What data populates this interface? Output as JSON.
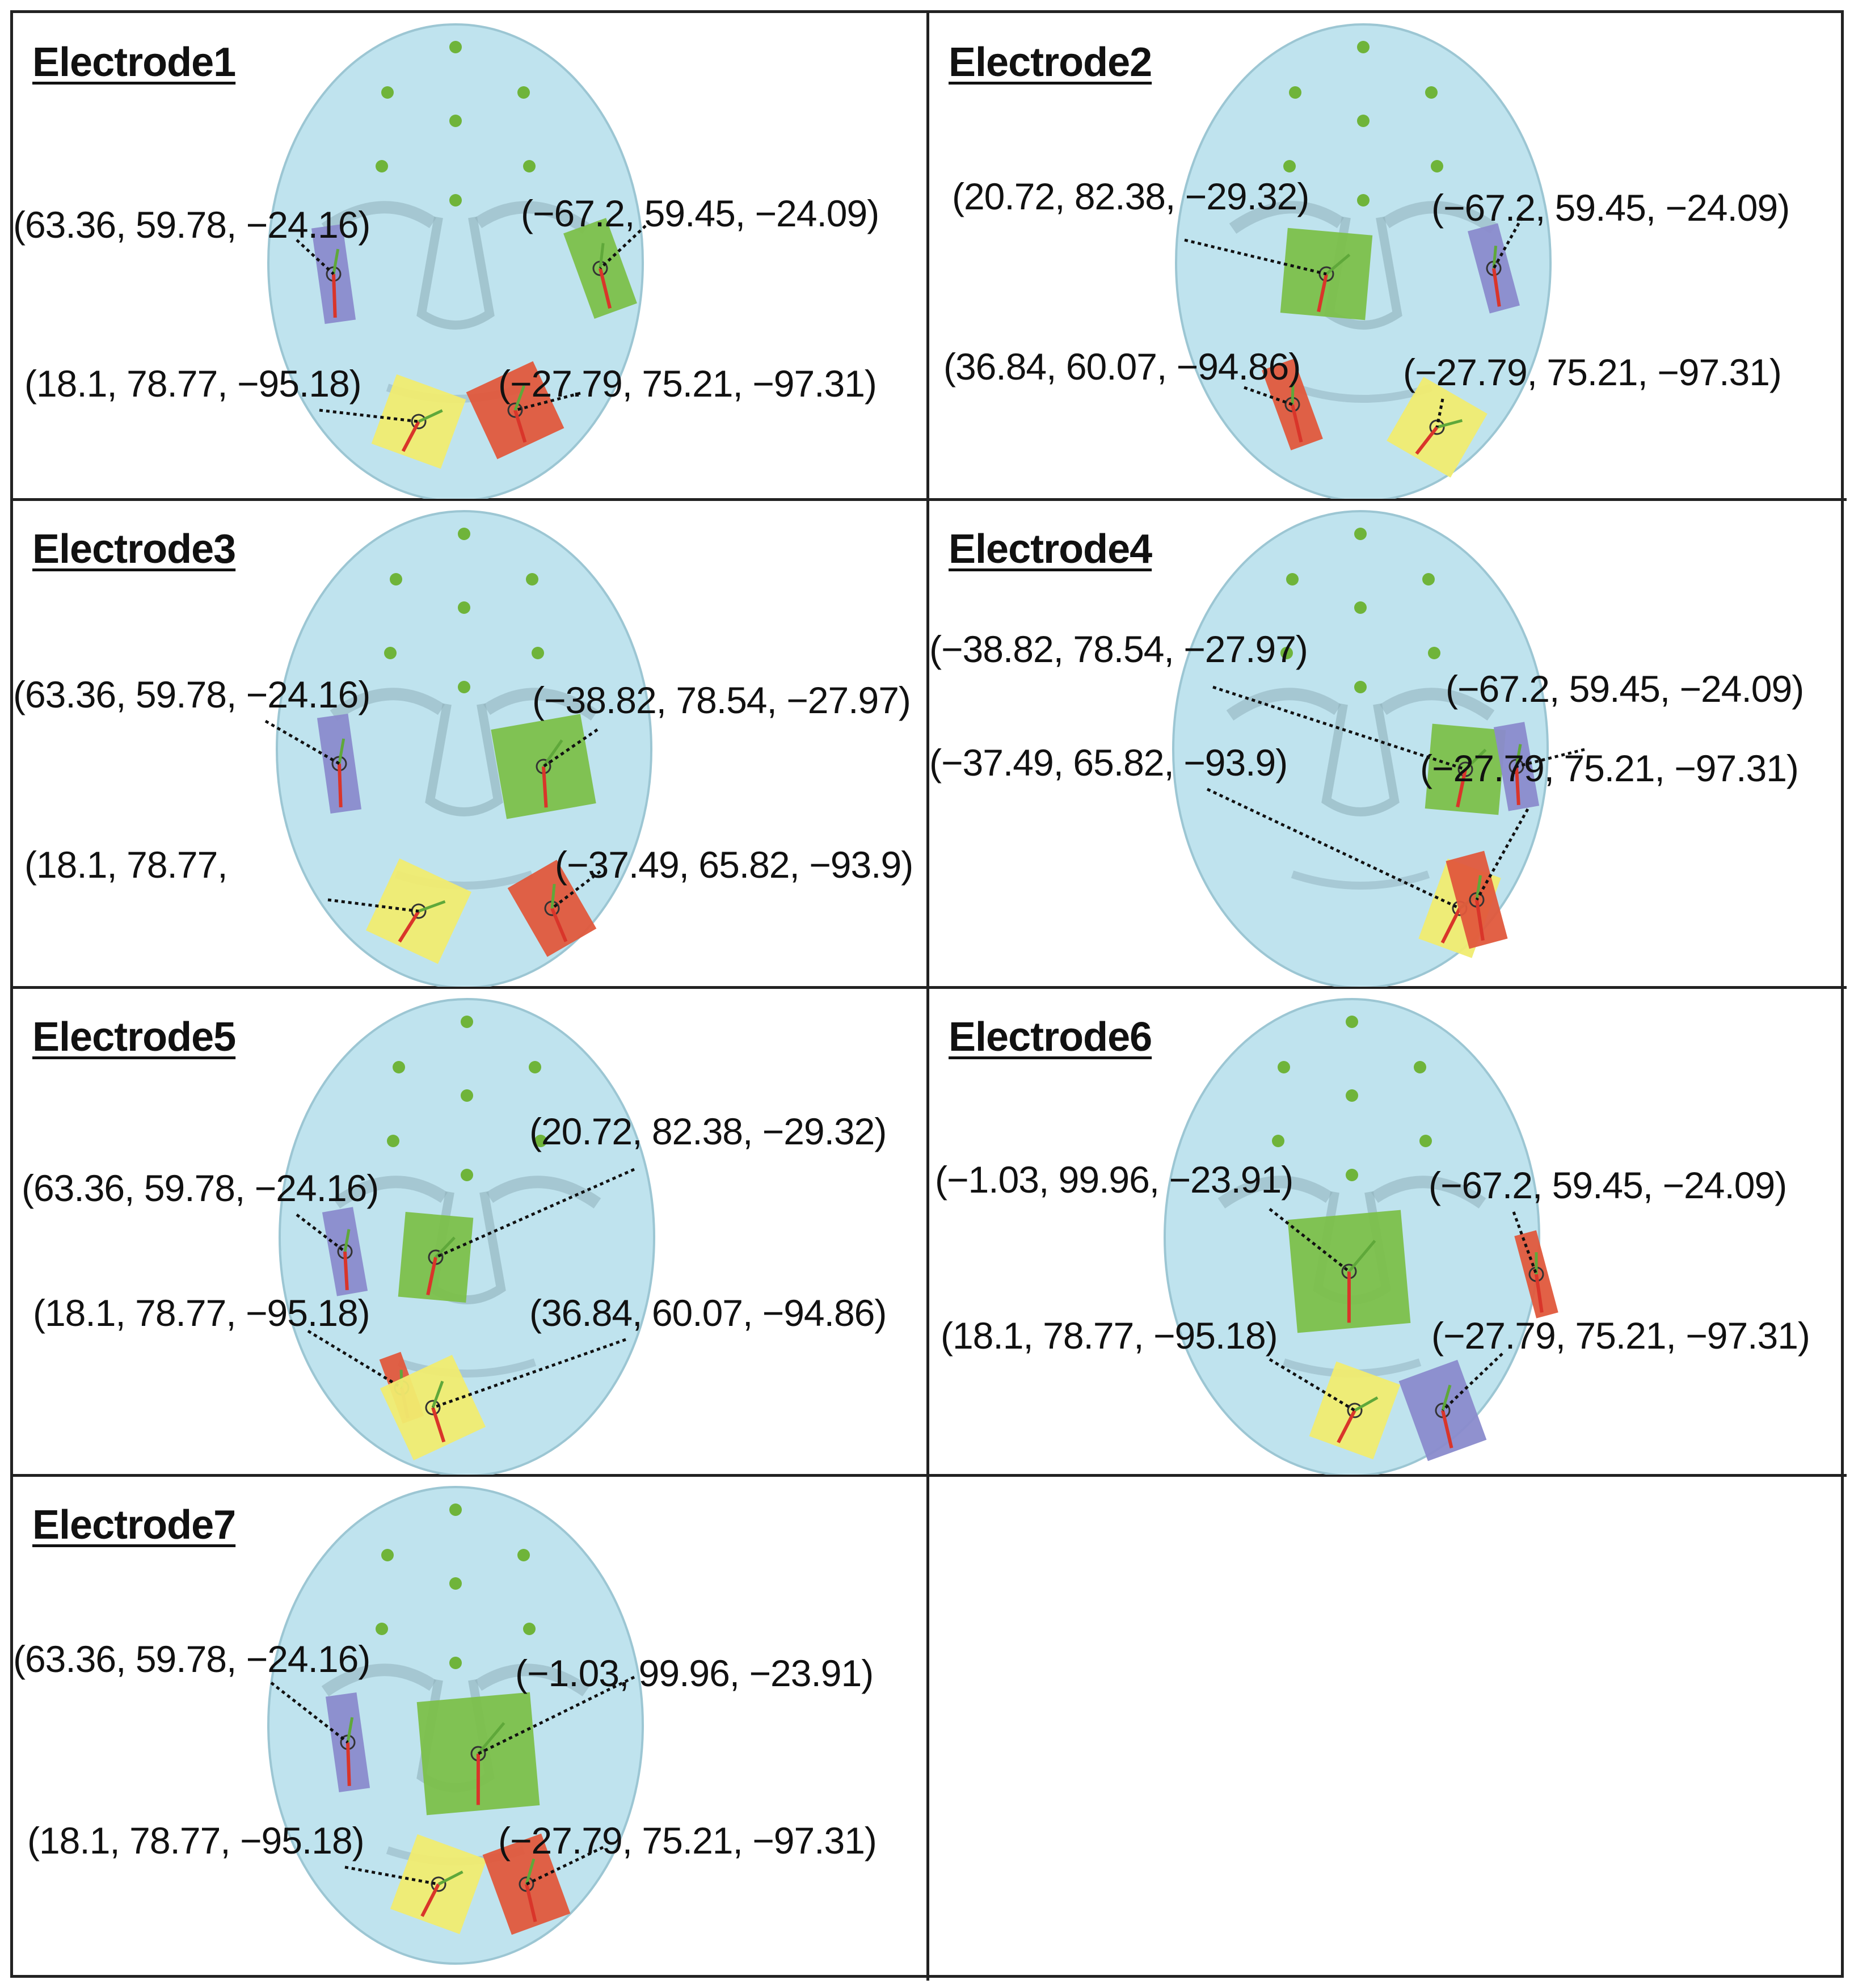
{
  "colors": {
    "face": "#bfe3ee",
    "face_shadow": "#8fb0bb",
    "green": "#7cc04a",
    "red": "#e0583c",
    "blue": "#8a8bcc",
    "yellow": "#f0ec70",
    "dot": "#6fb43a"
  },
  "panels": [
    {
      "title": "Electrode1",
      "electrodes": [
        {
          "label": "(63.36, 59.78, −24.16)",
          "color": "blue"
        },
        {
          "label": "(−67.2, 59.45, −24.09)",
          "color": "green"
        },
        {
          "label": "(18.1, 78.77, −95.18)",
          "color": "yellow"
        },
        {
          "label": "(−27.79, 75.21, −97.31)",
          "color": "red"
        }
      ]
    },
    {
      "title": "Electrode2",
      "electrodes": [
        {
          "label": "(20.72, 82.38, −29.32)",
          "color": "green"
        },
        {
          "label": "(−67.2, 59.45, −24.09)",
          "color": "blue"
        },
        {
          "label": "(36.84, 60.07, −94.86)",
          "color": "red"
        },
        {
          "label": "(−27.79, 75.21, −97.31)",
          "color": "yellow"
        }
      ]
    },
    {
      "title": "Electrode3",
      "electrodes": [
        {
          "label": "(63.36, 59.78, −24.16)",
          "color": "blue"
        },
        {
          "label": "(−38.82, 78.54, −27.97)",
          "color": "green"
        },
        {
          "label": "(18.1, 78.77,",
          "color": "yellow"
        },
        {
          "label": "(−37.49, 65.82, −93.9)",
          "color": "red"
        }
      ]
    },
    {
      "title": "Electrode4",
      "electrodes": [
        {
          "label": "(−38.82, 78.54, −27.97)",
          "color": "green"
        },
        {
          "label": "(−67.2, 59.45, −24.09)",
          "color": "blue"
        },
        {
          "label": "(−37.49, 65.82, −93.9)",
          "color": "yellow"
        },
        {
          "label": "(−27.79, 75.21, −97.31)",
          "color": "red"
        }
      ]
    },
    {
      "title": "Electrode5",
      "electrodes": [
        {
          "label": "(63.36, 59.78, −24.16)",
          "color": "blue"
        },
        {
          "label": "(20.72, 82.38, −29.32)",
          "color": "green"
        },
        {
          "label": "(18.1, 78.77, −95.18)",
          "color": "red"
        },
        {
          "label": "(36.84, 60.07, −94.86)",
          "color": "yellow"
        }
      ]
    },
    {
      "title": "Electrode6",
      "electrodes": [
        {
          "label": "(−1.03, 99.96, −23.91)",
          "color": "green"
        },
        {
          "label": "(−67.2, 59.45, −24.09)",
          "color": "red"
        },
        {
          "label": "(18.1, 78.77, −95.18)",
          "color": "yellow"
        },
        {
          "label": "(−27.79, 75.21, −97.31)",
          "color": "blue"
        }
      ]
    },
    {
      "title": "Electrode7",
      "electrodes": [
        {
          "label": "(63.36, 59.78, −24.16)",
          "color": "blue"
        },
        {
          "label": "(−1.03, 99.96, −23.91)",
          "color": "green"
        },
        {
          "label": "(18.1, 78.77, −95.18)",
          "color": "yellow"
        },
        {
          "label": "(−27.79, 75.21, −97.31)",
          "color": "red"
        }
      ]
    }
  ]
}
